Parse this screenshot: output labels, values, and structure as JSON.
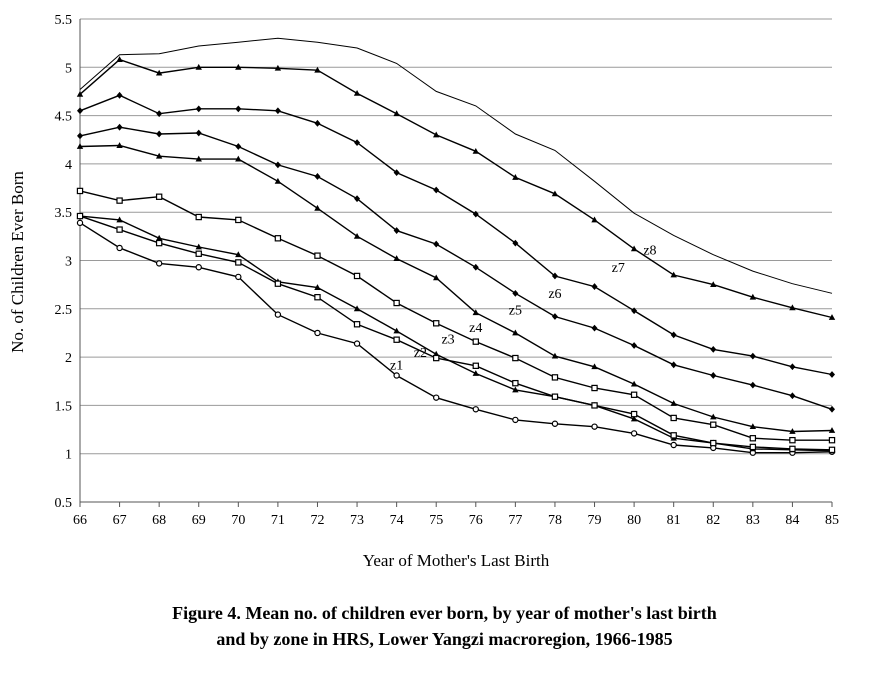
{
  "chart_data": {
    "type": "line",
    "xlabel": "Year of Mother's Last Birth",
    "ylabel": "No. of Children Ever Born",
    "x": [
      66,
      67,
      68,
      69,
      70,
      71,
      72,
      73,
      74,
      75,
      76,
      77,
      78,
      79,
      80,
      81,
      82,
      83,
      84,
      85
    ],
    "xlim": [
      66,
      85
    ],
    "ylim": [
      0.5,
      5.5
    ],
    "yticks": [
      0.5,
      1,
      1.5,
      2,
      2.5,
      3,
      3.5,
      4,
      4.5,
      5,
      5.5
    ],
    "ytick_labels": [
      "0.5",
      "1",
      "1.5",
      "2",
      "2.5",
      "3",
      "3.5",
      "4",
      "4.5",
      "5",
      "5.5"
    ],
    "grid": "horizontal",
    "series": [
      {
        "name": "z1",
        "marker": "circle",
        "label_at": [
          74.0,
          1.87
        ],
        "values": [
          3.39,
          3.13,
          2.97,
          2.93,
          2.83,
          2.44,
          2.25,
          2.14,
          1.81,
          1.58,
          1.46,
          1.35,
          1.31,
          1.28,
          1.21,
          1.09,
          1.06,
          1.01,
          1.01,
          1.02
        ]
      },
      {
        "name": "z2",
        "marker": "triangle",
        "label_at": [
          74.6,
          2.0
        ],
        "values": [
          3.46,
          3.42,
          3.23,
          3.14,
          3.06,
          2.78,
          2.72,
          2.5,
          2.27,
          2.03,
          1.83,
          1.66,
          1.59,
          1.5,
          1.36,
          1.16,
          1.11,
          1.05,
          1.04,
          1.03
        ]
      },
      {
        "name": "z3",
        "marker": "square",
        "label_at": [
          75.3,
          2.14
        ],
        "values": [
          3.46,
          3.32,
          3.18,
          3.07,
          2.98,
          2.76,
          2.62,
          2.34,
          2.18,
          1.99,
          1.91,
          1.73,
          1.59,
          1.5,
          1.41,
          1.19,
          1.11,
          1.07,
          1.05,
          1.04
        ]
      },
      {
        "name": "z4",
        "marker": "square",
        "label_at": [
          76.0,
          2.26
        ],
        "values": [
          3.72,
          3.62,
          3.66,
          3.45,
          3.42,
          3.23,
          3.05,
          2.84,
          2.56,
          2.35,
          2.16,
          1.99,
          1.79,
          1.68,
          1.61,
          1.37,
          1.3,
          1.16,
          1.14,
          1.14
        ]
      },
      {
        "name": "z5",
        "marker": "triangle",
        "label_at": [
          77.0,
          2.44
        ],
        "values": [
          4.18,
          4.19,
          4.08,
          4.05,
          4.05,
          3.82,
          3.54,
          3.25,
          3.02,
          2.82,
          2.46,
          2.25,
          2.01,
          1.9,
          1.72,
          1.52,
          1.38,
          1.28,
          1.23,
          1.24
        ]
      },
      {
        "name": "z6",
        "marker": "diamond",
        "label_at": [
          78.0,
          2.61
        ],
        "values": [
          4.29,
          4.38,
          4.31,
          4.32,
          4.18,
          3.99,
          3.87,
          3.64,
          3.31,
          3.17,
          2.93,
          2.66,
          2.42,
          2.3,
          2.12,
          1.92,
          1.81,
          1.71,
          1.6,
          1.46
        ]
      },
      {
        "name": "z7",
        "marker": "diamond",
        "label_at": [
          79.6,
          2.88
        ],
        "values": [
          4.55,
          4.71,
          4.52,
          4.57,
          4.57,
          4.55,
          4.42,
          4.22,
          3.91,
          3.73,
          3.48,
          3.18,
          2.84,
          2.73,
          2.48,
          2.23,
          2.08,
          2.01,
          1.9,
          1.82
        ]
      },
      {
        "name": "z8",
        "marker": "triangle",
        "label_at": [
          80.4,
          3.06
        ],
        "values": [
          4.72,
          5.08,
          4.94,
          5.0,
          5.0,
          4.99,
          4.97,
          4.73,
          4.52,
          4.3,
          4.13,
          3.86,
          3.69,
          3.42,
          3.12,
          2.85,
          2.75,
          2.62,
          2.51,
          2.41
        ]
      },
      {
        "name": "",
        "marker": "none",
        "label_at": null,
        "values": [
          4.77,
          5.13,
          5.14,
          5.22,
          5.26,
          5.3,
          5.26,
          5.2,
          5.04,
          4.75,
          4.6,
          4.31,
          4.14,
          3.82,
          3.49,
          3.26,
          3.06,
          2.89,
          2.76,
          2.66
        ]
      }
    ]
  },
  "caption": {
    "line1": "Figure 4. Mean no. of children ever born, by year of mother's last birth",
    "line2": "and by zone in HRS, Lower Yangzi macroregion, 1966-1985"
  },
  "colors": {
    "line": "#000000",
    "grid": "#9a9a9a",
    "axis": "#555555"
  }
}
